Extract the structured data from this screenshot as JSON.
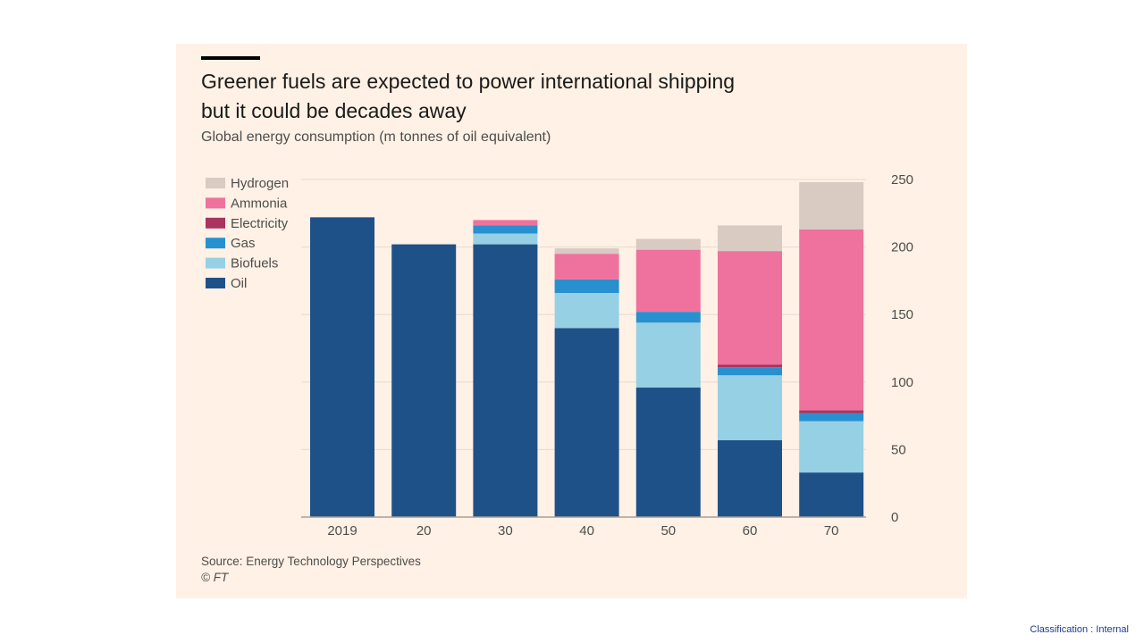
{
  "chart_data": {
    "type": "bar",
    "stacked": true,
    "title": [
      "Greener fuels are expected to power international shipping",
      "but it could be decades away"
    ],
    "subtitle": "Global energy consumption (m tonnes of oil equivalent)",
    "categories": [
      "2019",
      "20",
      "30",
      "40",
      "50",
      "60",
      "70"
    ],
    "ylim": [
      0,
      250
    ],
    "yticks": [
      0,
      50,
      100,
      150,
      200,
      250
    ],
    "y_axis_side": "right",
    "grid": true,
    "legend_position": "top-left",
    "series": [
      {
        "name": "Oil",
        "color": "#1f5189",
        "values": [
          222,
          202,
          202,
          140,
          96,
          57,
          33
        ]
      },
      {
        "name": "Biofuels",
        "color": "#96d0e4",
        "values": [
          0,
          0,
          8,
          26,
          48,
          48,
          38
        ]
      },
      {
        "name": "Gas",
        "color": "#2890cf",
        "values": [
          0,
          0,
          6,
          10,
          8,
          6,
          6
        ]
      },
      {
        "name": "Electricity",
        "color": "#a8345f",
        "values": [
          0,
          0,
          0,
          0,
          0,
          2,
          2
        ]
      },
      {
        "name": "Ammonia",
        "color": "#ee729d",
        "values": [
          0,
          0,
          4,
          19,
          46,
          84,
          134
        ]
      },
      {
        "name": "Hydrogen",
        "color": "#d9cac2",
        "values": [
          0,
          0,
          0,
          4,
          8,
          19,
          35
        ]
      }
    ],
    "legend_order": [
      "Hydrogen",
      "Ammonia",
      "Electricity",
      "Gas",
      "Biofuels",
      "Oil"
    ]
  },
  "source": "Source: Energy Technology Perspectives",
  "copyright": "© FT",
  "classification": "Classification : Internal"
}
